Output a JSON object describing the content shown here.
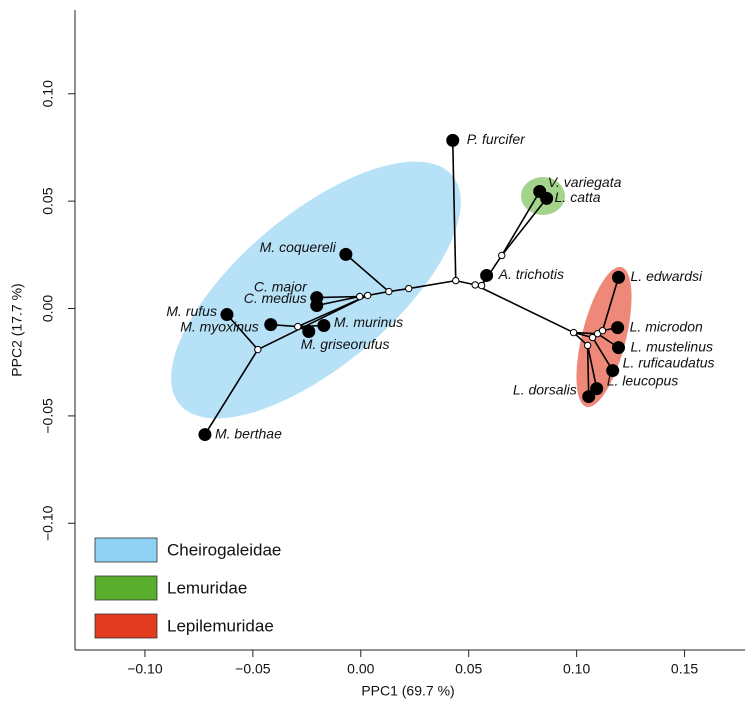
{
  "chart_data": {
    "type": "scatter",
    "x_label": "PPC1 (69.7 %)",
    "y_label": "PPC2 (17.7 %)",
    "xlim": [
      -0.1324,
      0.178
    ],
    "ylim": [
      -0.159,
      0.139
    ],
    "xticks": [
      {
        "value": -0.1,
        "label": "−0.10"
      },
      {
        "value": -0.05,
        "label": "−0.05"
      },
      {
        "value": 0,
        "label": "0.00"
      },
      {
        "value": 0.05,
        "label": "0.05"
      },
      {
        "value": 0.1,
        "label": "0.10"
      },
      {
        "value": 0.15,
        "label": "0.15"
      }
    ],
    "yticks": [
      {
        "value": -0.1,
        "label": "−0.10"
      },
      {
        "value": -0.05,
        "label": "−0.05"
      },
      {
        "value": 0,
        "label": "0.00"
      },
      {
        "value": 0.05,
        "label": "0.05"
      },
      {
        "value": 0.1,
        "label": "0.10"
      }
    ],
    "groups": [
      {
        "name": "Cheirogaleidae",
        "color": "#8fd1f3"
      },
      {
        "name": "Lemuridae",
        "color": "#5aae2e"
      },
      {
        "name": "Lepilemuridae",
        "color": "#e23b1f"
      }
    ],
    "nodes": [
      {
        "name": null,
        "x": 0.044,
        "y": 0.013,
        "parent": null
      },
      {
        "name": null,
        "x": 0.053,
        "y": 0.011,
        "parent": 0
      },
      {
        "name": null,
        "x": 0.056,
        "y": 0.0107,
        "parent": 1
      },
      {
        "name": "A. trichotis",
        "x": 0.0583,
        "y": 0.0154,
        "parent": 2
      },
      {
        "name": null,
        "x": 0.0653,
        "y": 0.0247,
        "parent": 2
      },
      {
        "name": "V. variegata",
        "x": 0.0829,
        "y": 0.0545,
        "parent": 4
      },
      {
        "name": "L. catta",
        "x": 0.0861,
        "y": 0.0513,
        "parent": 4
      },
      {
        "name": null,
        "x": 0.0986,
        "y": -0.0112,
        "parent": 1
      },
      {
        "name": null,
        "x": 0.1051,
        "y": -0.0172,
        "parent": 7
      },
      {
        "name": "L. dorsalis",
        "x": 0.1056,
        "y": -0.041,
        "parent": 8
      },
      {
        "name": "L. leucopus",
        "x": 0.1093,
        "y": -0.0373,
        "parent": 8
      },
      {
        "name": null,
        "x": 0.1074,
        "y": -0.0135,
        "parent": 7
      },
      {
        "name": "L. ruficaudatus",
        "x": 0.1167,
        "y": -0.0289,
        "parent": 11
      },
      {
        "name": null,
        "x": 0.1097,
        "y": -0.0117,
        "parent": 7
      },
      {
        "name": "L. mustelinus",
        "x": 0.1194,
        "y": -0.0182,
        "parent": 13
      },
      {
        "name": null,
        "x": 0.112,
        "y": -0.0103,
        "parent": 13
      },
      {
        "name": "L. edwardsi",
        "x": 0.1194,
        "y": 0.0145,
        "parent": 15
      },
      {
        "name": "L. microdon",
        "x": 0.119,
        "y": -0.0089,
        "parent": 15
      },
      {
        "name": "P. furcifer",
        "x": 0.0426,
        "y": 0.0783,
        "parent": 0
      },
      {
        "name": null,
        "x": 0.0222,
        "y": 0.0093,
        "parent": 0
      },
      {
        "name": null,
        "x": 0.013,
        "y": 0.0079,
        "parent": 19
      },
      {
        "name": "M. coquereli",
        "x": -0.0069,
        "y": 0.0252,
        "parent": 20
      },
      {
        "name": null,
        "x": 0.0032,
        "y": 0.0061,
        "parent": 20
      },
      {
        "name": null,
        "x": -0.0005,
        "y": 0.0056,
        "parent": 22
      },
      {
        "name": "C. major",
        "x": -0.0204,
        "y": 0.0051,
        "parent": 23
      },
      {
        "name": "C. medius",
        "x": -0.0204,
        "y": 0.0014,
        "parent": 23
      },
      {
        "name": null,
        "x": -0.0292,
        "y": -0.0084,
        "parent": 22
      },
      {
        "name": "M. murinus",
        "x": -0.0171,
        "y": -0.0079,
        "parent": 26
      },
      {
        "name": "M. griseorufus",
        "x": -0.0241,
        "y": -0.0107,
        "parent": 26
      },
      {
        "name": "M. myoxinus",
        "x": -0.0417,
        "y": -0.0075,
        "parent": 26
      },
      {
        "name": null,
        "x": -0.0477,
        "y": -0.0191,
        "parent": 22
      },
      {
        "name": "M. rufus",
        "x": -0.062,
        "y": -0.0028,
        "parent": 30
      },
      {
        "name": "M. berthae",
        "x": -0.0722,
        "y": -0.0587,
        "parent": 30
      }
    ]
  }
}
